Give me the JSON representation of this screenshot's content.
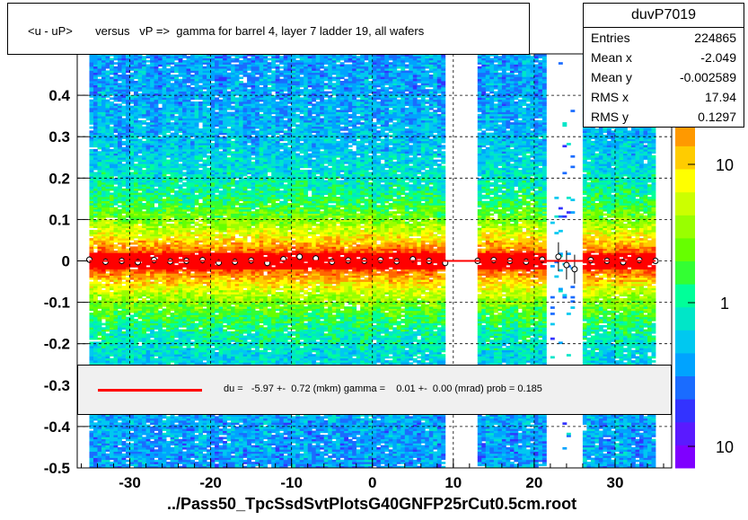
{
  "chart_data": {
    "type": "heatmap",
    "title": "<u - uP>       versus   vP =>  gamma for barrel 4, layer 7 ladder 19, all wafers",
    "xlim": [
      -36.5,
      37
    ],
    "ylim": [
      -0.5,
      0.5
    ],
    "x_ticks": [
      "-30",
      "-20",
      "-10",
      "0",
      "10",
      "20",
      "30"
    ],
    "x_tick_values": [
      -30,
      -20,
      -10,
      0,
      10,
      20,
      30
    ],
    "y_ticks": [
      "-0.5",
      "-0.4",
      "-0.3",
      "-0.2",
      "-0.1",
      "0",
      "0.1",
      "0.2",
      "0.3",
      "0.4"
    ],
    "y_tick_values": [
      -0.5,
      -0.4,
      -0.3,
      -0.2,
      -0.1,
      0,
      0.1,
      0.2,
      0.3,
      0.4
    ],
    "grid": true,
    "occupied_x_ranges": [
      [
        -35,
        9
      ],
      [
        13,
        21.5
      ],
      [
        26,
        35
      ]
    ],
    "sparse_x_range": [
      22,
      25
    ],
    "profile_points": {
      "x": [
        -35,
        -33,
        -31,
        -29,
        -27,
        -25,
        -23,
        -21,
        -19,
        -17,
        -15,
        -13,
        -11,
        -9,
        -7,
        -5,
        -3,
        -1,
        1,
        3,
        5,
        7,
        9,
        13,
        15,
        17,
        19,
        21,
        23,
        24,
        25,
        27,
        29,
        31,
        33,
        35
      ],
      "y": [
        0.003,
        -0.002,
        0.0,
        -0.003,
        0.002,
        -0.001,
        0.0,
        0.002,
        -0.004,
        -0.002,
        0.001,
        -0.005,
        0.004,
        0.01,
        0.006,
        -0.002,
        0.001,
        0.0,
        0.002,
        -0.001,
        0.004,
        0.0,
        -0.005,
        0.0,
        0.002,
        0.0,
        -0.002,
        0.003,
        0.01,
        -0.01,
        -0.02,
        0.002,
        0.0,
        -0.003,
        0.002,
        0.0
      ]
    },
    "fit_line": {
      "slope": 0.0,
      "intercept": 0.0,
      "color": "#ff0000"
    },
    "z_scale": {
      "type": "log",
      "labels": [
        "10",
        "1",
        "10"
      ]
    },
    "colors": [
      "#7f00ff",
      "#5a1aff",
      "#3333ff",
      "#1a6cff",
      "#00a3ff",
      "#00c8f0",
      "#00e6c8",
      "#00ff99",
      "#33ff33",
      "#66ff00",
      "#99ff00",
      "#ccff00",
      "#ffff00",
      "#ffcc00",
      "#ff9900",
      "#ff6600",
      "#ff3300",
      "#ff0000"
    ]
  },
  "stats": {
    "name": "duvP7019",
    "rows": [
      {
        "key": "Entries",
        "value": "224865"
      },
      {
        "key": "Mean x",
        "value": "-2.049"
      },
      {
        "key": "Mean y",
        "value": "-0.002589"
      },
      {
        "key": "RMS x",
        "value": "17.94"
      },
      {
        "key": "RMS y",
        "value": "0.1297"
      }
    ]
  },
  "legend": {
    "text": "du =   -5.97 +-  0.72 (mkm) gamma =    0.01 +-  0.00 (mrad) prob = 0.185"
  },
  "footer": "../Pass50_TpcSsdSvtPlotsG40GNFP25rCut0.5cm.root"
}
